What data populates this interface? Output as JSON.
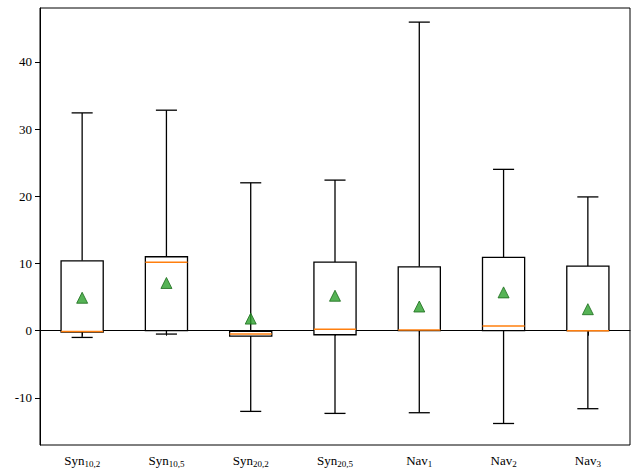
{
  "chart_data": {
    "type": "boxplot",
    "categories": [
      "Syn10,2",
      "Syn10,5",
      "Syn20,2",
      "Syn20,5",
      "Nav1",
      "Nav2",
      "Nav3"
    ],
    "series": [
      {
        "type": "boxplot",
        "color": "#000000",
        "values": [
          [
            -1.0,
            -0.2,
            -0.1,
            10.4,
            32.4
          ],
          [
            -0.5,
            0.0,
            10.2,
            11.0,
            32.8
          ],
          [
            -12.0,
            -0.8,
            -0.5,
            -0.1,
            22.0
          ],
          [
            -12.3,
            -0.6,
            0.2,
            10.2,
            22.4
          ],
          [
            -12.2,
            0.0,
            0.1,
            9.5,
            45.9
          ],
          [
            -13.8,
            0.0,
            0.7,
            10.9,
            24.0
          ],
          [
            -11.6,
            0.0,
            0.0,
            9.6,
            19.9
          ]
        ]
      },
      {
        "type": "scatter",
        "marker": "triangle",
        "color": "#2ca02c",
        "values": [
          4.9,
          7.1,
          1.8,
          5.2,
          3.6,
          5.7,
          3.2
        ]
      }
    ],
    "ylim": [
      -17,
      48
    ],
    "yticks": [
      -10,
      0,
      10,
      20,
      30,
      40
    ],
    "grid": false
  }
}
